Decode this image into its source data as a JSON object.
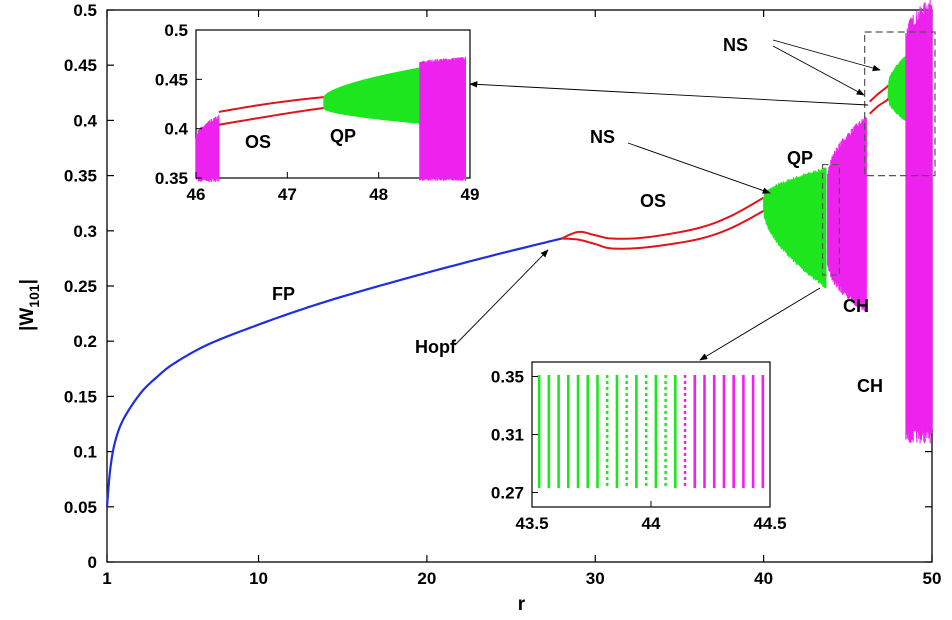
{
  "chart_data": {
    "type": "line",
    "title": "",
    "xlabel": "r",
    "ylabel": "|W101|",
    "ylabel_main": "|W",
    "ylabel_sub": "101",
    "ylabel_end": "|",
    "xlim": [
      1,
      50
    ],
    "ylim": [
      0,
      0.5
    ],
    "xticks": [
      1,
      10,
      20,
      30,
      40,
      50
    ],
    "yticks": [
      0,
      0.05,
      0.1,
      0.15,
      0.2,
      0.25,
      0.3,
      0.35,
      0.4,
      0.45,
      0.5
    ],
    "colors": {
      "fp": "#1f2ee0",
      "os": "#e0141b",
      "qp": "#1ee61e",
      "ch": "#ee22ee"
    },
    "series": [
      {
        "name": "FP",
        "type": "line",
        "x": [
          1,
          1.2,
          1.5,
          2,
          3,
          4,
          5,
          7,
          10,
          13,
          16,
          20,
          24,
          28
        ],
        "values": [
          0.05,
          0.085,
          0.11,
          0.13,
          0.153,
          0.168,
          0.18,
          0.197,
          0.215,
          0.231,
          0.245,
          0.262,
          0.278,
          0.293
        ]
      },
      {
        "name": "OS upper",
        "type": "line",
        "x": [
          28,
          29,
          30,
          31,
          33,
          36,
          38,
          40
        ],
        "values": [
          0.293,
          0.299,
          0.296,
          0.293,
          0.294,
          0.302,
          0.313,
          0.33
        ]
      },
      {
        "name": "OS lower",
        "type": "line",
        "x": [
          28,
          29,
          30,
          31,
          33,
          36,
          38,
          40
        ],
        "values": [
          0.293,
          0.292,
          0.288,
          0.284,
          0.285,
          0.292,
          0.302,
          0.318
        ]
      },
      {
        "name": "OS upper (high)",
        "type": "line",
        "x": [
          46.3,
          46.8,
          47.3,
          47.4
        ],
        "values": [
          0.417,
          0.424,
          0.43,
          0.432
        ]
      },
      {
        "name": "OS lower (high)",
        "type": "line",
        "x": [
          46.3,
          46.8,
          47.3,
          47.4
        ],
        "values": [
          0.406,
          0.413,
          0.418,
          0.42
        ]
      },
      {
        "name": "QP band 1",
        "type": "band",
        "x": [
          40,
          43.7
        ],
        "low": [
          0.318,
          0.25
        ],
        "high": [
          0.33,
          0.355
        ]
      },
      {
        "name": "CH band 1",
        "type": "band",
        "x": [
          43.8,
          46.1
        ],
        "low": [
          0.27,
          0.23
        ],
        "high": [
          0.35,
          0.4
        ]
      },
      {
        "name": "QP band 2",
        "type": "band",
        "x": [
          47.4,
          48.45
        ],
        "low": [
          0.42,
          0.4
        ],
        "high": [
          0.432,
          0.458
        ]
      },
      {
        "name": "CH band 2",
        "type": "band",
        "x": [
          48.45,
          50
        ],
        "low": [
          0.12,
          0.12
        ],
        "high": [
          0.47,
          0.5
        ]
      }
    ],
    "annotations": [
      {
        "text": "FP"
      },
      {
        "text": "Hopf"
      },
      {
        "text": "OS"
      },
      {
        "text": "NS"
      },
      {
        "text": "QP"
      },
      {
        "text": "CH"
      },
      {
        "text": "CH"
      },
      {
        "text": "NS"
      }
    ],
    "insets": [
      {
        "xlim": [
          46,
          49
        ],
        "ylim": [
          0.35,
          0.5
        ],
        "xticks": [
          46,
          47,
          48,
          49
        ],
        "yticks": [
          0.35,
          0.4,
          0.45,
          0.5
        ],
        "labels": [
          "OS",
          "QP"
        ]
      },
      {
        "xlim": [
          43.5,
          44.5
        ],
        "ylim": [
          0.26,
          0.36
        ],
        "xticks": [
          43.5,
          44,
          44.5
        ],
        "yticks": [
          0.27,
          0.31,
          0.35
        ],
        "xtick_labels": [
          "43.5",
          "44",
          "44.5"
        ],
        "ytick_labels": [
          "0.27",
          "0.31",
          "0.35"
        ]
      }
    ],
    "grid": false,
    "legend": "none"
  }
}
